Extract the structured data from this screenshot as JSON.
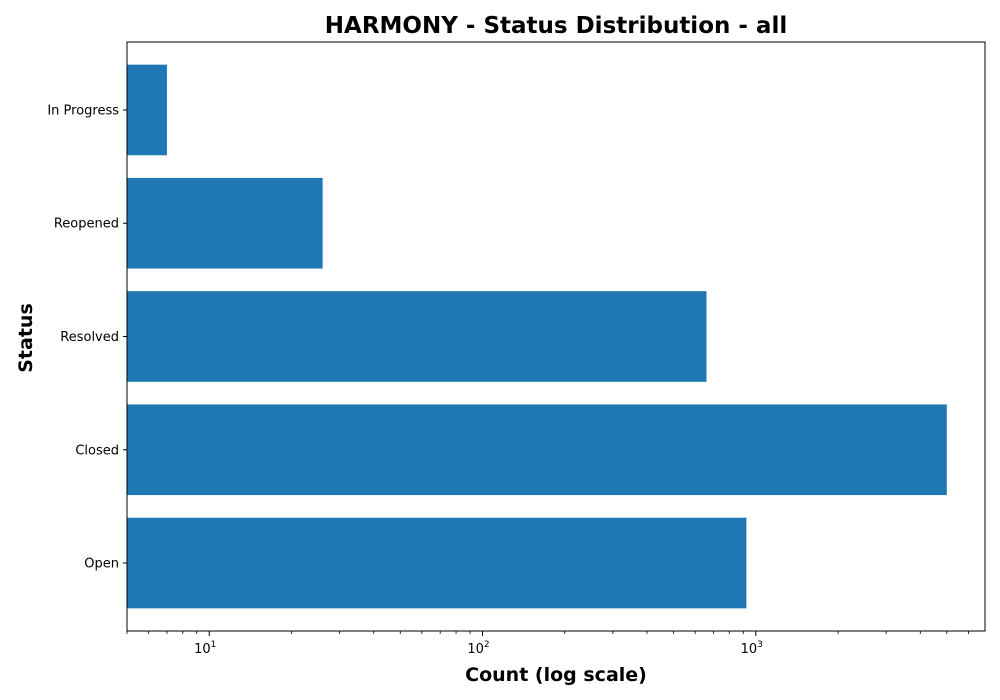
{
  "chart_data": {
    "type": "bar",
    "orientation": "horizontal",
    "title": "HARMONY - Status Distribution - all",
    "xlabel": "Count (log scale)",
    "ylabel": "Status",
    "xscale": "log",
    "xlim": [
      5,
      6900
    ],
    "categories": [
      "Open",
      "Closed",
      "Resolved",
      "Reopened",
      "In Progress"
    ],
    "values": [
      924,
      5000,
      660,
      26,
      7
    ],
    "x_ticks": [
      {
        "value": 10,
        "base": "10",
        "exp": "1"
      },
      {
        "value": 100,
        "base": "10",
        "exp": "2"
      },
      {
        "value": 1000,
        "base": "10",
        "exp": "3"
      }
    ],
    "bar_color": "#1f77b4",
    "grid": false,
    "legend": "none"
  }
}
